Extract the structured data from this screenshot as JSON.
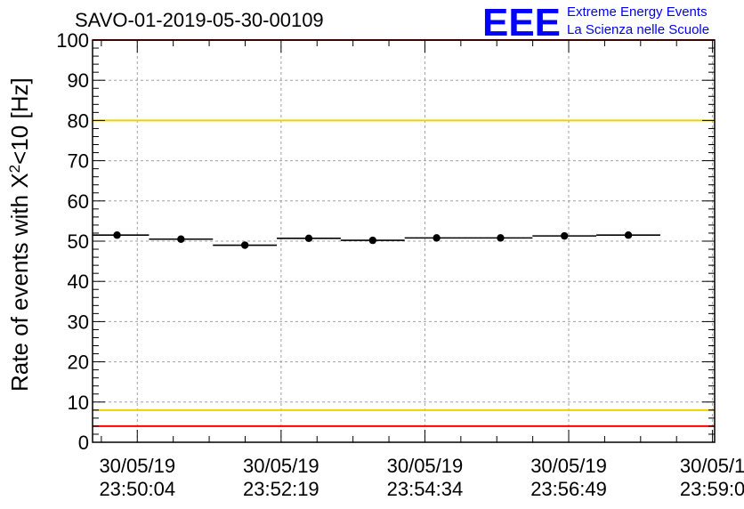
{
  "title": "SAVO-01-2019-05-30-00109",
  "logo": {
    "mark": "EEE",
    "line1": "Extreme Energy Events",
    "line2": "La Scienza nelle Scuole",
    "color": "#0000ff"
  },
  "chart_data": {
    "type": "scatter",
    "title": "SAVO-01-2019-05-30-00109",
    "ylabel_main": "Rate of events with X",
    "ylabel_sup": "2",
    "ylabel_tail": "<10 [Hz]",
    "xlabel": "",
    "ylim": [
      0,
      100
    ],
    "yticks": [
      0,
      10,
      20,
      30,
      40,
      50,
      60,
      70,
      80,
      90,
      100
    ],
    "xlim": [
      "30/05/19 23:49:22",
      "30/05/19 23:59:06"
    ],
    "xtick_labels": [
      {
        "date": "30/05/19",
        "time": "23:50:04"
      },
      {
        "date": "30/05/19",
        "time": "23:52:19"
      },
      {
        "date": "30/05/19",
        "time": "23:54:34"
      },
      {
        "date": "30/05/19",
        "time": "23:56:49"
      },
      {
        "date": "30/05/1",
        "time": "23:59:0"
      }
    ],
    "grid": true,
    "series": [
      {
        "x": [
          "23:49:45",
          "23:50:45",
          "23:51:45",
          "23:52:45",
          "23:53:45",
          "23:54:45",
          "23:55:45",
          "23:56:45",
          "23:57:45"
        ],
        "y": [
          51.5,
          50.5,
          49.0,
          50.7,
          50.2,
          50.8,
          50.8,
          51.3,
          51.5
        ],
        "bin_width_s": 60
      }
    ],
    "reference_lines": [
      {
        "y": 100,
        "color": "#ff0000"
      },
      {
        "y": 80,
        "color": "#f0d000"
      },
      {
        "y": 8,
        "color": "#f0d000"
      },
      {
        "y": 4,
        "color": "#ff0000"
      }
    ]
  }
}
